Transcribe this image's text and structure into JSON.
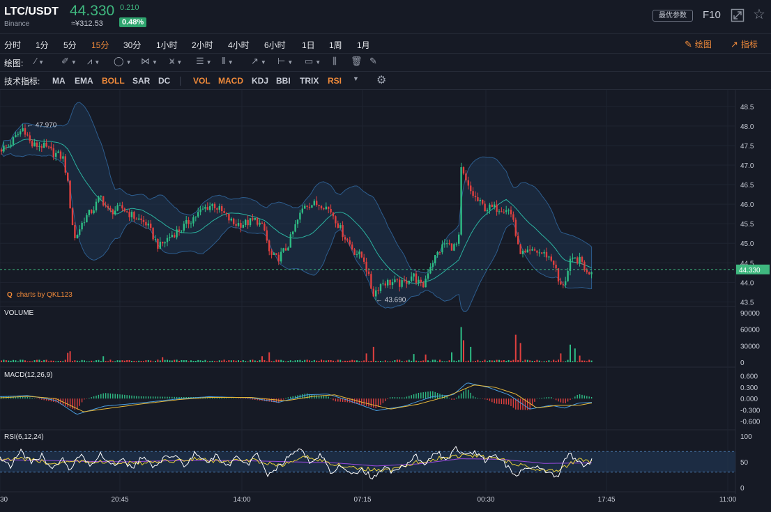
{
  "header": {
    "pair": "LTC/USDT",
    "exchange": "Binance",
    "last_price": "44.330",
    "change_abs": "0.210",
    "cny_price": "≈¥312.53",
    "change_pct": "0.48%",
    "best_params_label": "最优参数",
    "f10_label": "F10",
    "fullscreen_icon": "fullscreen-icon",
    "favorite_icon": "star-icon"
  },
  "intervals": [
    "分时",
    "1分",
    "5分",
    "15分",
    "30分",
    "1小时",
    "2小时",
    "4小时",
    "6小时",
    "1日",
    "1周",
    "1月"
  ],
  "active_interval": "15分",
  "actions": {
    "draw_label": "绘图",
    "indicator_label": "指标"
  },
  "draw_toolbar": {
    "label": "绘图:",
    "tools": [
      "line-tool-icon",
      "pen-tool-icon",
      "polyline-tool-icon",
      "circle-tool-icon",
      "pattern-tool-icon",
      "wave-tool-icon",
      "fib-tool-icon",
      "channel-tool-icon",
      "arrow-tool-icon",
      "range-tool-icon",
      "comment-tool-icon",
      "bars-tool-icon",
      "trash-icon",
      "brush-icon"
    ]
  },
  "indicator_toolbar": {
    "label": "技术指标:",
    "main": [
      {
        "name": "MA",
        "active": false
      },
      {
        "name": "EMA",
        "active": false
      },
      {
        "name": "BOLL",
        "active": true
      },
      {
        "name": "SAR",
        "active": false
      },
      {
        "name": "DC",
        "active": false
      }
    ],
    "sub": [
      {
        "name": "VOL",
        "active": true
      },
      {
        "name": "MACD",
        "active": true
      },
      {
        "name": "KDJ",
        "active": false
      },
      {
        "name": "BBI",
        "active": false
      },
      {
        "name": "TRIX",
        "active": false
      },
      {
        "name": "RSI",
        "active": true
      }
    ]
  },
  "brand": "charts by QKL123",
  "chart_data": {
    "type": "candlestick",
    "colors": {
      "up": "#2ebd85",
      "down": "#e0403f",
      "boll_mid": "#2bb3a0",
      "boll_band": "#2d5d8e",
      "macd_dif": "#4a9ee0",
      "macd_dea": "#e8b93a",
      "rsi_6": "#ffffff",
      "rsi_12": "#e8d03a",
      "rsi_24": "#9a4adf"
    },
    "price_axis": {
      "ticks": [
        "48.5",
        "48.0",
        "47.5",
        "47.0",
        "46.5",
        "46.0",
        "45.5",
        "45.0",
        "44.5",
        "44.0",
        "43.5"
      ],
      "range": [
        43.4,
        48.8
      ]
    },
    "price_path": [
      [
        0,
        47.4
      ],
      [
        12,
        47.5
      ],
      [
        22,
        47.7
      ],
      [
        34,
        47.97
      ],
      [
        45,
        47.5
      ],
      [
        60,
        47.5
      ],
      [
        78,
        47.3
      ],
      [
        90,
        47.2
      ],
      [
        96,
        46.7
      ],
      [
        101,
        45.9
      ],
      [
        107,
        45.1
      ],
      [
        120,
        45.6
      ],
      [
        135,
        45.9
      ],
      [
        144,
        46.2
      ],
      [
        156,
        45.8
      ],
      [
        175,
        45.9
      ],
      [
        190,
        45.7
      ],
      [
        210,
        45.5
      ],
      [
        228,
        44.9
      ],
      [
        245,
        45.2
      ],
      [
        262,
        45.4
      ],
      [
        280,
        45.7
      ],
      [
        294,
        45.9
      ],
      [
        306,
        46.0
      ],
      [
        318,
        45.8
      ],
      [
        335,
        45.5
      ],
      [
        350,
        45.5
      ],
      [
        368,
        45.6
      ],
      [
        380,
        45.3
      ],
      [
        387,
        44.7
      ],
      [
        398,
        44.6
      ],
      [
        412,
        44.9
      ],
      [
        425,
        45.5
      ],
      [
        437,
        46.0
      ],
      [
        450,
        46.0
      ],
      [
        463,
        46.0
      ],
      [
        476,
        45.8
      ],
      [
        490,
        45.3
      ],
      [
        508,
        44.8
      ],
      [
        522,
        44.6
      ],
      [
        535,
        43.69
      ],
      [
        548,
        44.0
      ],
      [
        562,
        44.0
      ],
      [
        578,
        43.95
      ],
      [
        592,
        44.2
      ],
      [
        606,
        43.85
      ],
      [
        616,
        44.4
      ],
      [
        626,
        44.7
      ],
      [
        638,
        45.0
      ],
      [
        650,
        44.9
      ],
      [
        658,
        45.0
      ],
      [
        661,
        46.9
      ],
      [
        672,
        46.4
      ],
      [
        684,
        46.1
      ],
      [
        696,
        45.9
      ],
      [
        712,
        45.9
      ],
      [
        728,
        45.9
      ],
      [
        737,
        45.6
      ],
      [
        742,
        44.9
      ],
      [
        752,
        44.7
      ],
      [
        768,
        44.8
      ],
      [
        784,
        44.7
      ],
      [
        795,
        44.5
      ],
      [
        803,
        43.85
      ],
      [
        812,
        44.1
      ],
      [
        818,
        44.5
      ],
      [
        826,
        44.6
      ],
      [
        836,
        44.5
      ],
      [
        842,
        44.2
      ],
      [
        848,
        44.33
      ]
    ],
    "annotations": [
      {
        "text": "← 47.970",
        "x": 34,
        "y": 47.97
      },
      {
        "text": "← 43.690",
        "x": 535,
        "y": 43.69
      }
    ],
    "last_price_label": "44.330",
    "volume": {
      "label": "VOLUME",
      "ticks": [
        "90000",
        "60000",
        "30000",
        "0"
      ],
      "max": 90000,
      "spikes": [
        [
          96,
          17000,
          "down"
        ],
        [
          100,
          20000,
          "down"
        ],
        [
          145,
          11000,
          "up"
        ],
        [
          230,
          9000,
          "down"
        ],
        [
          375,
          11000,
          "down"
        ],
        [
          385,
          18000,
          "down"
        ],
        [
          524,
          16000,
          "down"
        ],
        [
          535,
          28000,
          "down"
        ],
        [
          590,
          15000,
          "up"
        ],
        [
          608,
          14000,
          "down"
        ],
        [
          645,
          18000,
          "up"
        ],
        [
          660,
          64000,
          "up"
        ],
        [
          662,
          40000,
          "down"
        ],
        [
          672,
          28000,
          "up"
        ],
        [
          738,
          50000,
          "down"
        ],
        [
          744,
          35000,
          "down"
        ],
        [
          803,
          16000,
          "down"
        ],
        [
          815,
          32000,
          "up"
        ],
        [
          822,
          25000,
          "up"
        ],
        [
          830,
          12000,
          "down"
        ]
      ]
    },
    "macd": {
      "label": "MACD(12,26,9)",
      "ticks": [
        "0.600",
        "0.300",
        "0.000",
        "-0.300",
        "-0.600"
      ],
      "range": [
        -0.7,
        0.65
      ],
      "dif": [
        [
          0,
          0.05
        ],
        [
          40,
          0.08
        ],
        [
          80,
          -0.05
        ],
        [
          110,
          -0.42
        ],
        [
          150,
          -0.2
        ],
        [
          200,
          -0.12
        ],
        [
          260,
          0.0
        ],
        [
          300,
          0.05
        ],
        [
          360,
          0.02
        ],
        [
          400,
          -0.1
        ],
        [
          440,
          0.1
        ],
        [
          470,
          0.12
        ],
        [
          500,
          -0.05
        ],
        [
          540,
          -0.32
        ],
        [
          580,
          -0.2
        ],
        [
          620,
          0.05
        ],
        [
          650,
          0.1
        ],
        [
          670,
          0.42
        ],
        [
          700,
          0.3
        ],
        [
          730,
          0.1
        ],
        [
          760,
          -0.28
        ],
        [
          790,
          -0.18
        ],
        [
          810,
          -0.25
        ],
        [
          830,
          -0.12
        ],
        [
          848,
          -0.1
        ]
      ],
      "dea": [
        [
          0,
          0.02
        ],
        [
          40,
          0.06
        ],
        [
          80,
          0.0
        ],
        [
          120,
          -0.35
        ],
        [
          160,
          -0.25
        ],
        [
          200,
          -0.15
        ],
        [
          260,
          -0.02
        ],
        [
          300,
          0.03
        ],
        [
          360,
          0.03
        ],
        [
          410,
          -0.06
        ],
        [
          450,
          0.06
        ],
        [
          480,
          0.1
        ],
        [
          520,
          -0.1
        ],
        [
          560,
          -0.28
        ],
        [
          600,
          -0.15
        ],
        [
          640,
          0.05
        ],
        [
          680,
          0.36
        ],
        [
          710,
          0.3
        ],
        [
          740,
          0.12
        ],
        [
          770,
          -0.25
        ],
        [
          800,
          -0.18
        ],
        [
          830,
          -0.18
        ],
        [
          848,
          -0.12
        ]
      ]
    },
    "rsi": {
      "label": "RSI(6,12,24)",
      "ticks": [
        "100",
        "50",
        "0"
      ],
      "band": [
        30,
        70
      ],
      "rsi6": [
        [
          0,
          60
        ],
        [
          15,
          42
        ],
        [
          30,
          70
        ],
        [
          45,
          48
        ],
        [
          60,
          62
        ],
        [
          75,
          38
        ],
        [
          90,
          55
        ],
        [
          100,
          30
        ],
        [
          115,
          65
        ],
        [
          130,
          45
        ],
        [
          145,
          66
        ],
        [
          160,
          40
        ],
        [
          175,
          58
        ],
        [
          190,
          35
        ],
        [
          205,
          62
        ],
        [
          220,
          38
        ],
        [
          235,
          56
        ],
        [
          250,
          65
        ],
        [
          265,
          42
        ],
        [
          280,
          68
        ],
        [
          295,
          48
        ],
        [
          310,
          62
        ],
        [
          325,
          40
        ],
        [
          340,
          58
        ],
        [
          355,
          45
        ],
        [
          370,
          66
        ],
        [
          385,
          22
        ],
        [
          400,
          40
        ],
        [
          415,
          62
        ],
        [
          430,
          75
        ],
        [
          445,
          48
        ],
        [
          460,
          65
        ],
        [
          475,
          30
        ],
        [
          490,
          45
        ],
        [
          505,
          25
        ],
        [
          520,
          35
        ],
        [
          535,
          18
        ],
        [
          550,
          40
        ],
        [
          565,
          30
        ],
        [
          580,
          42
        ],
        [
          595,
          62
        ],
        [
          610,
          48
        ],
        [
          625,
          72
        ],
        [
          640,
          55
        ],
        [
          655,
          78
        ],
        [
          665,
          60
        ],
        [
          680,
          70
        ],
        [
          695,
          52
        ],
        [
          710,
          62
        ],
        [
          725,
          45
        ],
        [
          740,
          25
        ],
        [
          755,
          35
        ],
        [
          770,
          45
        ],
        [
          785,
          32
        ],
        [
          800,
          22
        ],
        [
          815,
          68
        ],
        [
          828,
          50
        ],
        [
          840,
          40
        ],
        [
          848,
          52
        ]
      ],
      "rsi12": [
        [
          0,
          56
        ],
        [
          40,
          55
        ],
        [
          80,
          46
        ],
        [
          120,
          52
        ],
        [
          160,
          49
        ],
        [
          200,
          47
        ],
        [
          240,
          51
        ],
        [
          280,
          56
        ],
        [
          320,
          49
        ],
        [
          360,
          54
        ],
        [
          400,
          42
        ],
        [
          440,
          60
        ],
        [
          480,
          46
        ],
        [
          520,
          36
        ],
        [
          560,
          34
        ],
        [
          600,
          50
        ],
        [
          640,
          60
        ],
        [
          680,
          62
        ],
        [
          720,
          54
        ],
        [
          760,
          38
        ],
        [
          800,
          34
        ],
        [
          830,
          54
        ],
        [
          848,
          50
        ]
      ],
      "rsi24": [
        [
          0,
          54
        ],
        [
          60,
          53
        ],
        [
          120,
          51
        ],
        [
          180,
          50
        ],
        [
          240,
          52
        ],
        [
          300,
          53
        ],
        [
          360,
          52
        ],
        [
          420,
          50
        ],
        [
          480,
          48
        ],
        [
          540,
          42
        ],
        [
          600,
          46
        ],
        [
          660,
          56
        ],
        [
          720,
          55
        ],
        [
          780,
          47
        ],
        [
          848,
          48
        ]
      ]
    },
    "time_axis": {
      "labels": [
        [
          0,
          "30"
        ],
        [
          172,
          "20:45"
        ],
        [
          347,
          "14:00"
        ],
        [
          520,
          "07:15"
        ],
        [
          697,
          "00:30"
        ],
        [
          870,
          "17:45"
        ],
        [
          1044,
          "11:00"
        ]
      ]
    }
  }
}
